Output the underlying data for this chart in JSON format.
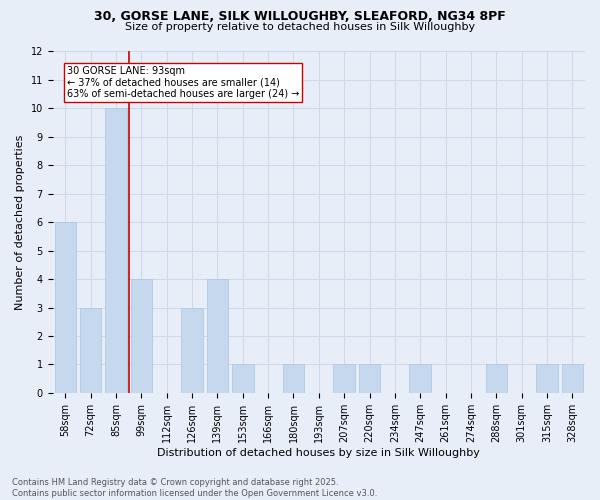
{
  "title_line1": "30, GORSE LANE, SILK WILLOUGHBY, SLEAFORD, NG34 8PF",
  "title_line2": "Size of property relative to detached houses in Silk Willoughby",
  "xlabel": "Distribution of detached houses by size in Silk Willoughby",
  "ylabel": "Number of detached properties",
  "categories": [
    "58sqm",
    "72sqm",
    "85sqm",
    "99sqm",
    "112sqm",
    "126sqm",
    "139sqm",
    "153sqm",
    "166sqm",
    "180sqm",
    "193sqm",
    "207sqm",
    "220sqm",
    "234sqm",
    "247sqm",
    "261sqm",
    "274sqm",
    "288sqm",
    "301sqm",
    "315sqm",
    "328sqm"
  ],
  "values": [
    6,
    3,
    10,
    4,
    0,
    3,
    4,
    1,
    0,
    1,
    0,
    1,
    1,
    0,
    1,
    0,
    0,
    1,
    0,
    1,
    1
  ],
  "bar_color": "#c5d8ed",
  "bar_edgecolor": "#a8c4e0",
  "grid_color": "#d0d8e8",
  "background_color": "#e8eef8",
  "vline_x": 2.5,
  "vline_color": "#cc0000",
  "annotation_text": "30 GORSE LANE: 93sqm\n← 37% of detached houses are smaller (14)\n63% of semi-detached houses are larger (24) →",
  "annotation_box_color": "#ffffff",
  "annotation_box_edgecolor": "#cc0000",
  "ylim": [
    0,
    12
  ],
  "yticks": [
    0,
    1,
    2,
    3,
    4,
    5,
    6,
    7,
    8,
    9,
    10,
    11,
    12
  ],
  "footer_line1": "Contains HM Land Registry data © Crown copyright and database right 2025.",
  "footer_line2": "Contains public sector information licensed under the Open Government Licence v3.0.",
  "title1_fontsize": 9,
  "title2_fontsize": 8,
  "xlabel_fontsize": 8,
  "ylabel_fontsize": 8,
  "tick_fontsize": 7,
  "annotation_fontsize": 7,
  "footer_fontsize": 6
}
